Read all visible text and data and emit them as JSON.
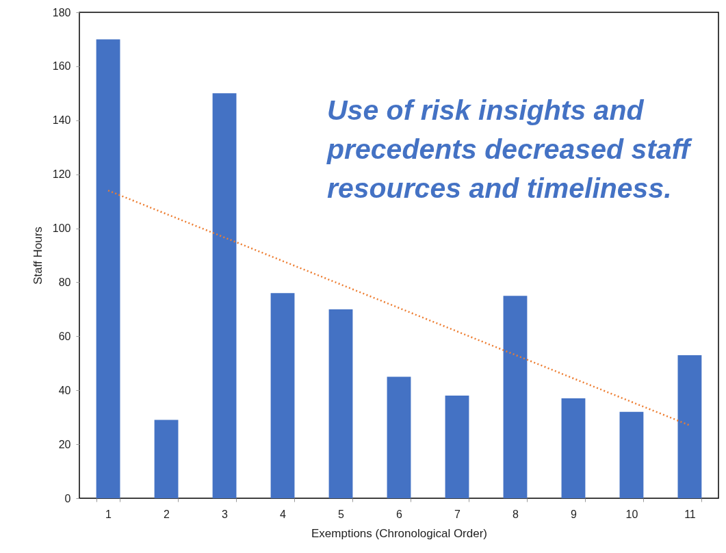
{
  "chart_data": {
    "type": "bar",
    "xlabel": "Exemptions (Chronological Order)",
    "ylabel": "Staff Hours",
    "categories": [
      "1",
      "2",
      "3",
      "4",
      "5",
      "6",
      "7",
      "8",
      "9",
      "10",
      "11"
    ],
    "series": [
      {
        "type": "bar",
        "color": "#4472c4",
        "values": [
          170,
          29,
          150,
          76,
          70,
          45,
          38,
          75,
          37,
          32,
          53
        ]
      },
      {
        "type": "line",
        "color": "#ed7d31",
        "line_style": "dotted",
        "x": [
          "1",
          "11"
        ],
        "values": [
          114,
          27
        ]
      }
    ],
    "ylim": [
      0,
      180
    ],
    "yticks": [
      0,
      20,
      40,
      60,
      80,
      100,
      120,
      140,
      160,
      180
    ],
    "annotations": [
      "Use of risk insights and precedents decreased staff resources and timeliness."
    ]
  }
}
